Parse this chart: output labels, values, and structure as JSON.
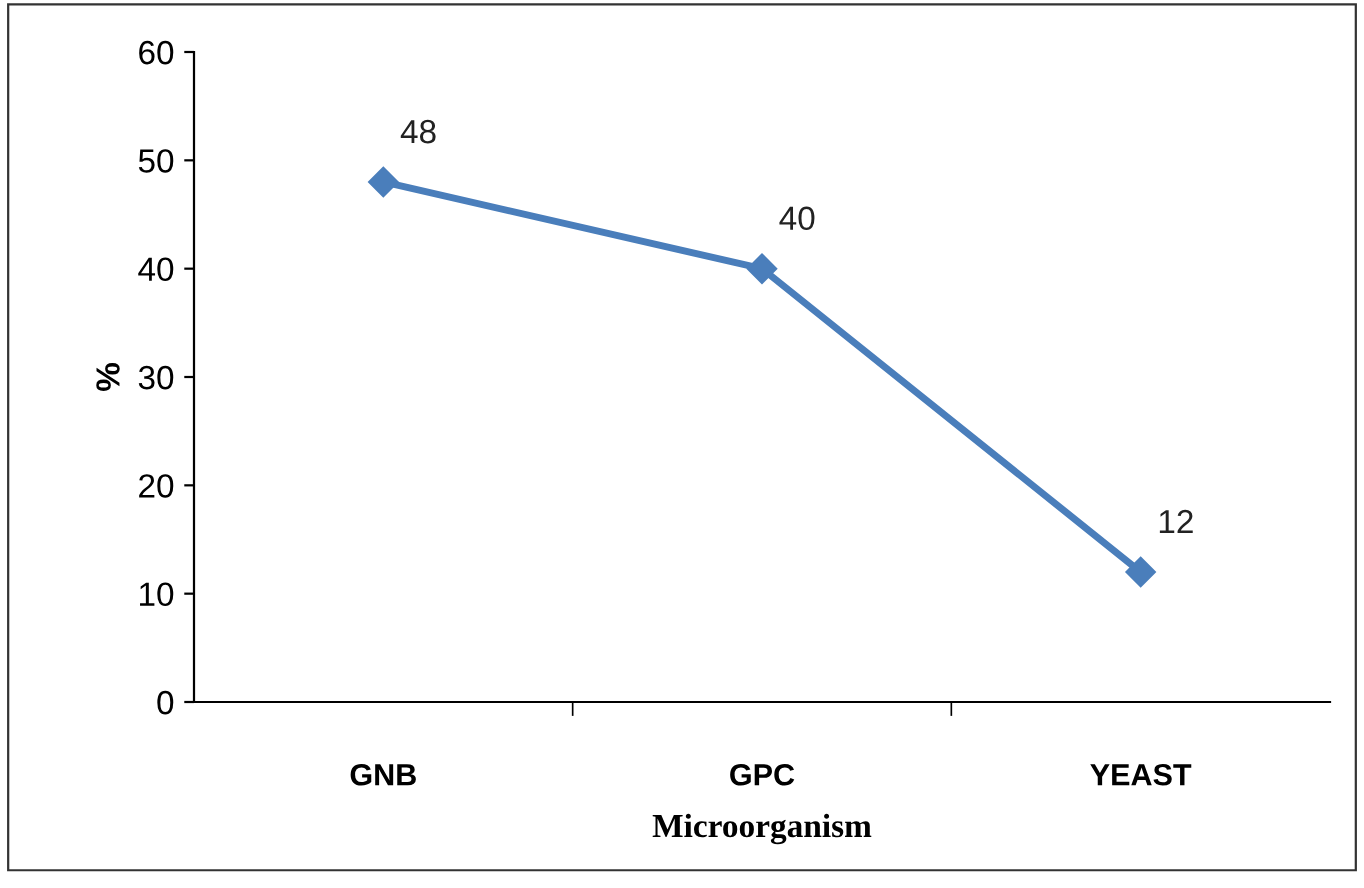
{
  "chart_data": {
    "type": "line",
    "xlabel": "Microorganism",
    "ylabel": "%",
    "categories": [
      "GNB",
      "GPC",
      "YEAST"
    ],
    "series": [
      {
        "color": "#4a7ebb",
        "values": [
          48,
          40,
          12
        ]
      }
    ],
    "ylim": [
      0,
      60
    ],
    "yticks": [
      0,
      10,
      20,
      30,
      40,
      50,
      60
    ],
    "marker": "diamond",
    "line_style": "solid",
    "data_labels": true,
    "grid": false,
    "legend": false
  }
}
